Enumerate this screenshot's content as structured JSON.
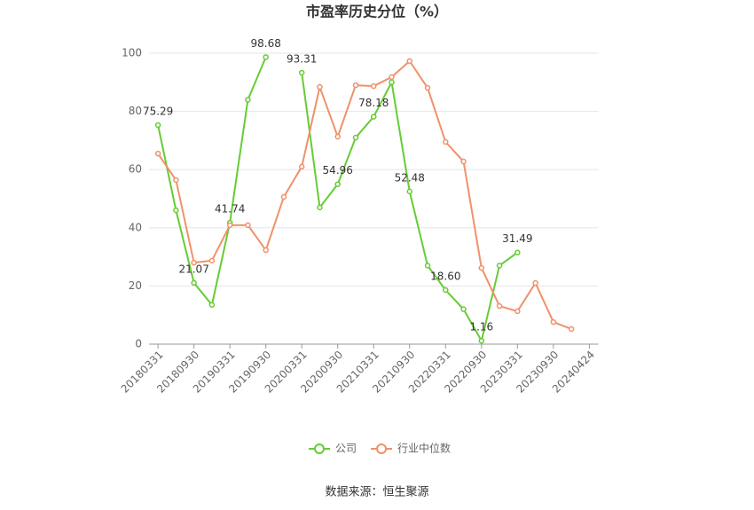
{
  "chart_data": {
    "type": "line",
    "title": "市盈率历史分位（%）",
    "categories": [
      "20180331",
      null,
      "20180930",
      null,
      "20190331",
      null,
      "20190930",
      null,
      "20200331",
      null,
      "20200930",
      null,
      "20210331",
      null,
      "20210930",
      null,
      "20220331",
      null,
      "20220930",
      null,
      "20230331",
      null,
      "20230930",
      null,
      "20240424"
    ],
    "series": [
      {
        "name": "公司",
        "color": "#66cc33",
        "values": [
          75.29,
          46,
          21.07,
          13.5,
          41.74,
          84,
          98.68,
          null,
          93.31,
          47,
          54.96,
          71,
          78.18,
          90,
          52.48,
          27,
          18.6,
          12,
          1.16,
          27,
          31.49,
          null,
          null,
          null,
          null
        ],
        "value_labels": [
          "75.29",
          null,
          "21.07",
          null,
          "41.74",
          null,
          "98.68",
          null,
          "93.31",
          null,
          "54.96",
          null,
          "78.18",
          null,
          "52.48",
          null,
          "18.60",
          null,
          "1.16",
          null,
          "31.49",
          null,
          null,
          null,
          null
        ]
      },
      {
        "name": "行业中位数",
        "color": "#f0916a",
        "values": [
          65.5,
          56.4,
          28,
          28.7,
          40.9,
          40.9,
          32.3,
          50.6,
          61,
          88.4,
          71.3,
          89,
          88.7,
          91.8,
          97.3,
          88.1,
          69.5,
          62.8,
          26.2,
          13.1,
          11.3,
          21,
          7.6,
          5.2,
          null
        ]
      }
    ],
    "ylim": [
      0,
      100
    ],
    "yticks": [
      0,
      20,
      40,
      60,
      80,
      100
    ],
    "grid": true,
    "source": "数据来源：恒生聚源"
  }
}
